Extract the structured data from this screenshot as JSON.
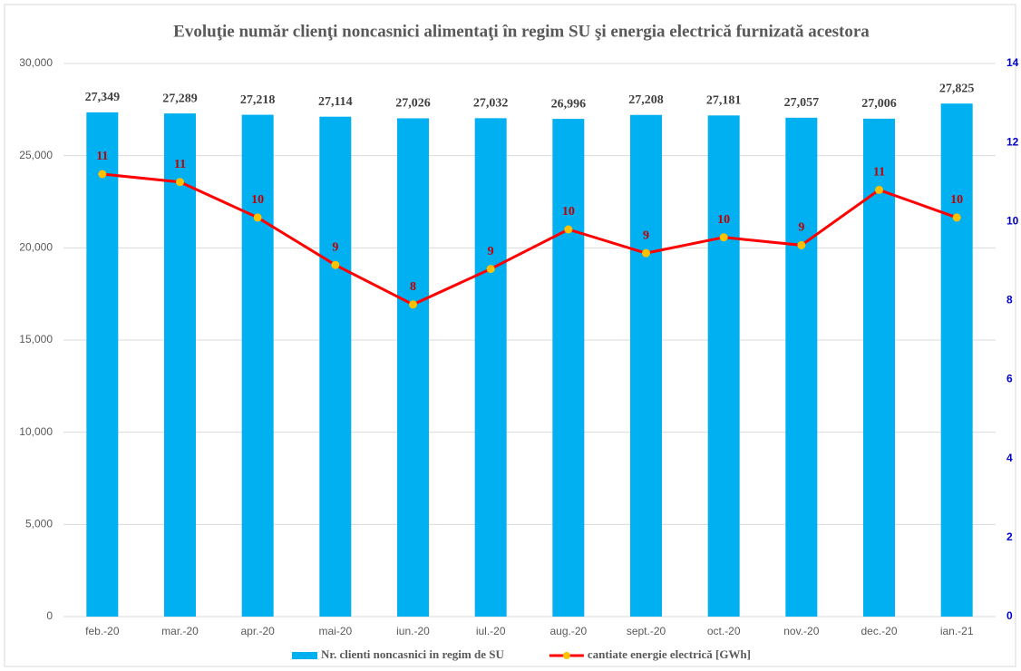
{
  "chart_data": {
    "type": "bar_line",
    "title": "Evoluţie număr clienţi noncasnici alimentaţi în regim SU şi energia electrică furnizată acestora",
    "categories": [
      "feb.-20",
      "mar.-20",
      "apr.-20",
      "mai-20",
      "iun.-20",
      "iul.-20",
      "aug.-20",
      "sept.-20",
      "oct.-20",
      "nov.-20",
      "dec.-20",
      "ian.-21"
    ],
    "series": [
      {
        "name": "Nr. clienti noncasnici in regim de SU",
        "type": "bar",
        "color": "#00b0f0",
        "values": [
          27349,
          27289,
          27218,
          27114,
          27026,
          27032,
          26996,
          27208,
          27181,
          27057,
          27006,
          27825
        ],
        "value_labels": [
          "27,349",
          "27,289",
          "27,218",
          "27,114",
          "27,026",
          "27,032",
          "26,996",
          "27,208",
          "27,181",
          "27,057",
          "27,006",
          "27,825"
        ]
      },
      {
        "name": "cantiate energie electrică [GWh]",
        "type": "line",
        "axis": "y2",
        "color": "#ff0000",
        "marker_color": "#ffc000",
        "values": [
          11.2,
          11.0,
          10.1,
          8.9,
          7.9,
          8.8,
          9.8,
          9.2,
          9.6,
          9.4,
          10.8,
          10.1
        ],
        "value_labels": [
          "11",
          "11",
          "10",
          "9",
          "8",
          "9",
          "10",
          "9",
          "10",
          "9",
          "11",
          "10"
        ]
      }
    ],
    "ylim": [
      0,
      30000
    ],
    "yticks": [
      {
        "value": 0,
        "label": "0"
      },
      {
        "value": 5000,
        "label": "5,000"
      },
      {
        "value": 10000,
        "label": "10,000"
      },
      {
        "value": 15000,
        "label": "15,000"
      },
      {
        "value": 20000,
        "label": "20,000"
      },
      {
        "value": 25000,
        "label": "25,000"
      },
      {
        "value": 30000,
        "label": "30,000"
      }
    ],
    "y2lim": [
      0,
      14
    ],
    "y2ticks": [
      0,
      2,
      4,
      6,
      8,
      10,
      12,
      14
    ],
    "y2_color": "#0000cc",
    "grid": true,
    "legend": "bottom"
  }
}
